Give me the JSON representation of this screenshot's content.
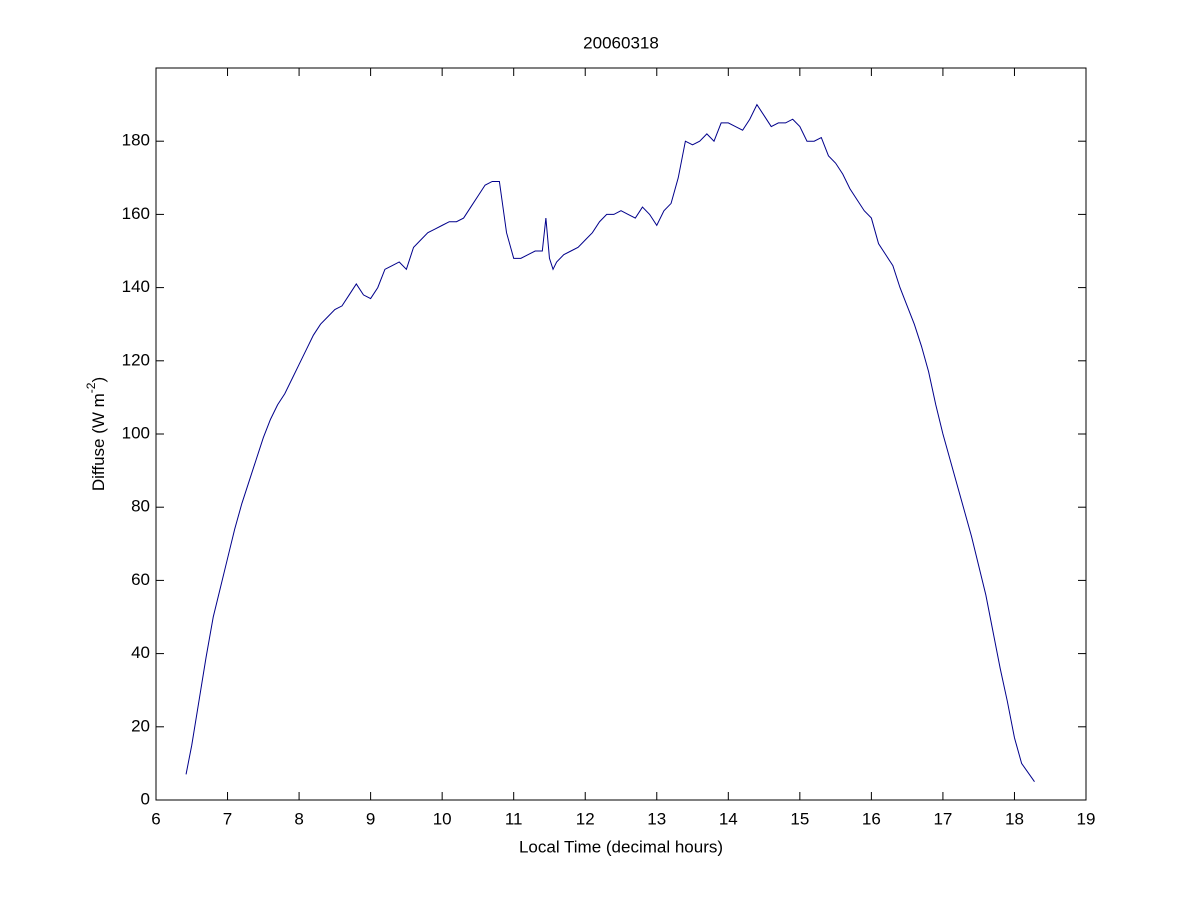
{
  "chart_data": {
    "type": "line",
    "title": "20060318",
    "xlabel": "Local Time (decimal hours)",
    "ylabel": "Diffuse (W m",
    "ylabel_sup": "-2",
    "ylabel_end": ")",
    "x": [
      6.42,
      6.5,
      6.6,
      6.7,
      6.8,
      6.9,
      7.0,
      7.1,
      7.2,
      7.3,
      7.4,
      7.5,
      7.6,
      7.7,
      7.8,
      7.9,
      8.0,
      8.1,
      8.2,
      8.3,
      8.4,
      8.5,
      8.6,
      8.7,
      8.8,
      8.9,
      9.0,
      9.1,
      9.2,
      9.3,
      9.4,
      9.5,
      9.6,
      9.7,
      9.8,
      9.9,
      10.0,
      10.1,
      10.2,
      10.3,
      10.4,
      10.5,
      10.6,
      10.7,
      10.8,
      10.9,
      11.0,
      11.1,
      11.2,
      11.3,
      11.4,
      11.45,
      11.5,
      11.55,
      11.6,
      11.7,
      11.8,
      11.9,
      12.0,
      12.1,
      12.2,
      12.3,
      12.4,
      12.5,
      12.6,
      12.7,
      12.8,
      12.9,
      13.0,
      13.1,
      13.2,
      13.3,
      13.4,
      13.5,
      13.6,
      13.7,
      13.8,
      13.9,
      14.0,
      14.1,
      14.2,
      14.3,
      14.4,
      14.5,
      14.6,
      14.7,
      14.8,
      14.9,
      15.0,
      15.1,
      15.2,
      15.3,
      15.4,
      15.5,
      15.6,
      15.7,
      15.8,
      15.9,
      16.0,
      16.1,
      16.2,
      16.3,
      16.4,
      16.5,
      16.6,
      16.7,
      16.8,
      16.9,
      17.0,
      17.1,
      17.2,
      17.3,
      17.4,
      17.5,
      17.6,
      17.7,
      17.8,
      17.9,
      18.0,
      18.1,
      18.28
    ],
    "series": [
      {
        "name": "Diffuse",
        "color": "#00008b",
        "values": [
          7,
          15,
          27,
          39,
          50,
          58,
          66,
          74,
          81,
          87,
          93,
          99,
          104,
          108,
          111,
          115,
          119,
          123,
          127,
          130,
          132,
          134,
          135,
          138,
          141,
          138,
          137,
          140,
          145,
          146,
          147,
          145,
          151,
          153,
          155,
          156,
          157,
          158,
          158,
          159,
          162,
          165,
          168,
          169,
          169,
          155,
          148,
          148,
          149,
          150,
          150,
          159,
          148,
          145,
          147,
          149,
          150,
          151,
          153,
          155,
          158,
          160,
          160,
          161,
          160,
          159,
          162,
          160,
          157,
          161,
          163,
          170,
          180,
          179,
          180,
          182,
          180,
          185,
          185,
          184,
          183,
          186,
          190,
          187,
          184,
          185,
          185,
          186,
          184,
          180,
          180,
          181,
          176,
          174,
          171,
          167,
          164,
          161,
          159,
          152,
          149,
          146,
          140,
          135,
          130,
          124,
          117,
          108,
          100,
          93,
          86,
          79,
          72,
          64,
          56,
          46,
          36,
          27,
          17,
          10,
          5
        ]
      }
    ],
    "xlim": [
      6,
      19
    ],
    "xticks": [
      6,
      7,
      8,
      9,
      10,
      11,
      12,
      13,
      14,
      15,
      16,
      17,
      18,
      19
    ],
    "ylim": [
      0,
      200
    ],
    "yticks": [
      0,
      20,
      40,
      60,
      80,
      100,
      120,
      140,
      160,
      180
    ]
  }
}
